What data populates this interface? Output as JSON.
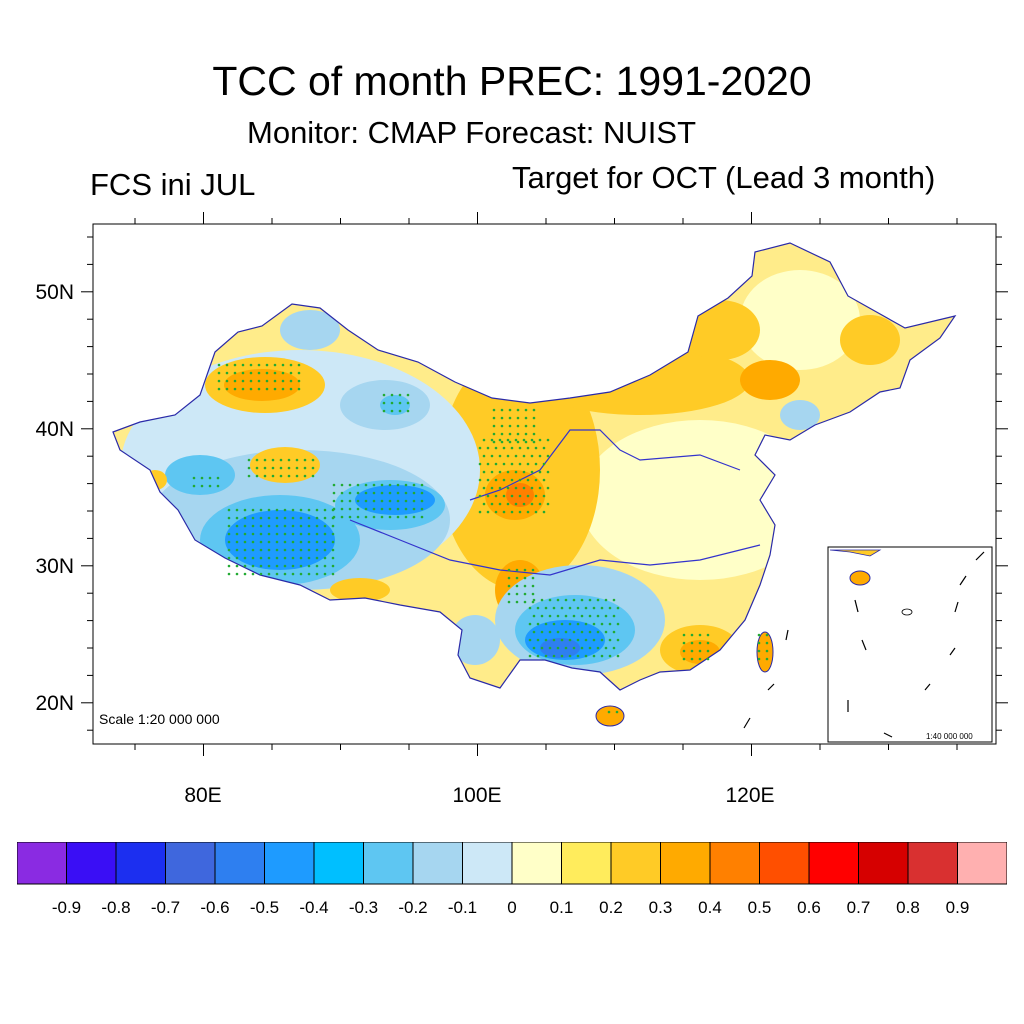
{
  "title": "TCC of month PREC: 1991-2020",
  "subtitle": "Monitor: CMAP   Forecast: NUIST",
  "left_label": "FCS ini JUL",
  "right_label": "Target for OCT (Lead 3 month)",
  "lat_labels": [
    "50N",
    "40N",
    "30N",
    "20N"
  ],
  "lon_labels": [
    "80E",
    "100E",
    "120E"
  ],
  "scale_main": "Scale 1:20 000 000",
  "scale_inset": "1:40 000 000",
  "colorbar": {
    "labels": [
      "-0.9",
      "-0.8",
      "-0.7",
      "-0.6",
      "-0.5",
      "-0.4",
      "-0.3",
      "-0.2",
      "-0.1",
      "0",
      "0.1",
      "0.2",
      "0.3",
      "0.4",
      "0.5",
      "0.6",
      "0.7",
      "0.8",
      "0.9"
    ],
    "colors": [
      "#8a2be2",
      "#3a0ef5",
      "#1c2ff0",
      "#3f67dd",
      "#2e7ff0",
      "#1e9bff",
      "#00bfff",
      "#5ec6f2",
      "#a6d6f0",
      "#cde8f7",
      "#ffffc8",
      "#ffec5c",
      "#ffcb26",
      "#ffaa00",
      "#ff8000",
      "#ff4f00",
      "#ff0000",
      "#d60000",
      "#d93030",
      "#ffb0b0"
    ]
  }
}
